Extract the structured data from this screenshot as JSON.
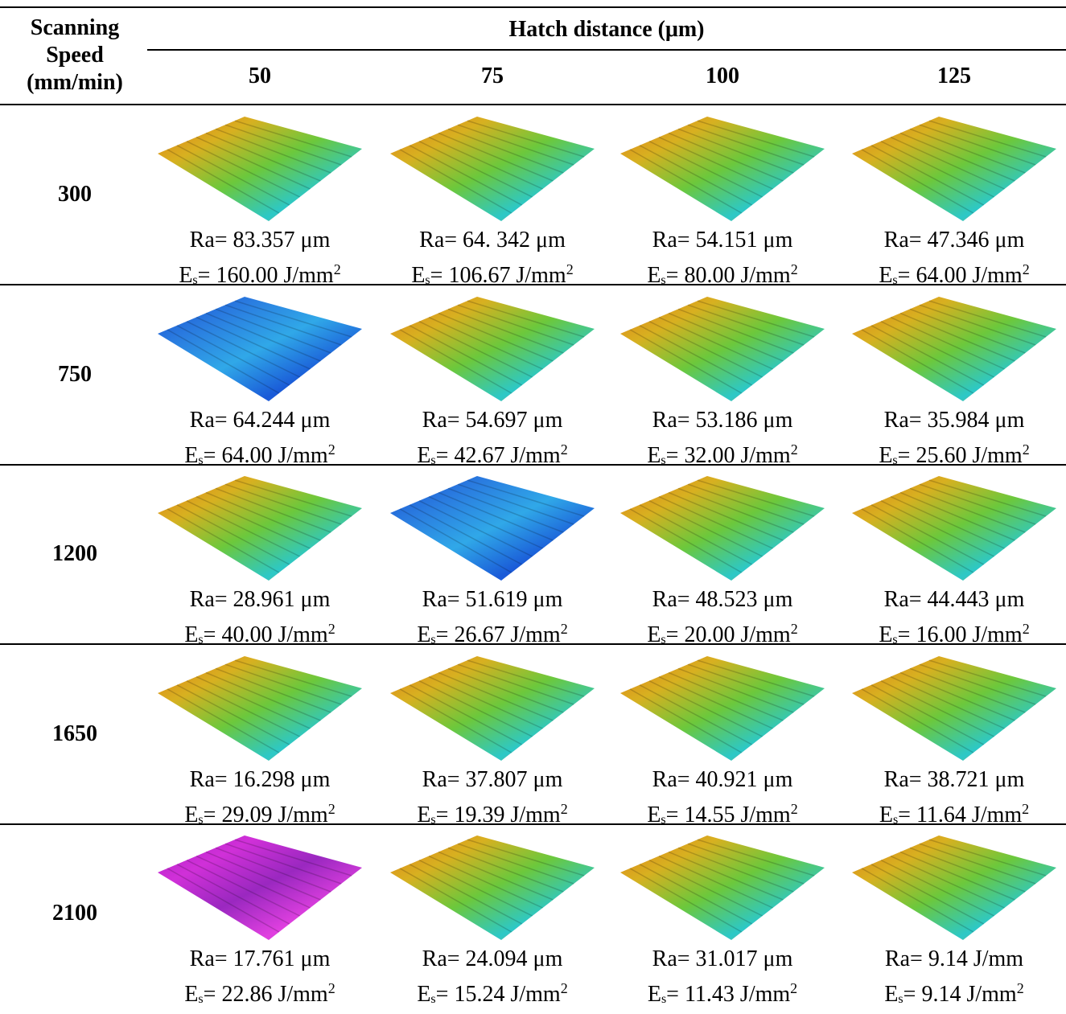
{
  "header": {
    "row_header": [
      "Scanning",
      "Speed",
      "(mm/min)"
    ],
    "group": "Hatch distance (μm)",
    "columns": [
      "50",
      "75",
      "100",
      "125"
    ]
  },
  "rows": [
    {
      "speed": "300",
      "cells": [
        {
          "ra": "Ra= 83.357 μm",
          "es": {
            "symbol": "E",
            "subscript": "s",
            "text": "= 160.00 J/mm",
            "superscript": "2"
          }
        },
        {
          "ra": "Ra= 64. 342 μm",
          "es": {
            "symbol": "E",
            "subscript": "s",
            "text": "= 106.67 J/mm",
            "superscript": "2"
          }
        },
        {
          "ra": "Ra= 54.151 μm",
          "es": {
            "symbol": "E",
            "subscript": "s",
            "text": "= 80.00 J/mm",
            "superscript": "2"
          }
        },
        {
          "ra": "Ra= 47.346 μm",
          "es": {
            "symbol": "E",
            "subscript": "s",
            "text": "= 64.00 J/mm",
            "superscript": "2"
          }
        }
      ]
    },
    {
      "speed": "750",
      "cells": [
        {
          "ra": "Ra= 64.244 μm",
          "es": {
            "symbol": "E",
            "subscript": "s",
            "text": "= 64.00 J/mm",
            "superscript": "2"
          }
        },
        {
          "ra": "Ra= 54.697 μm",
          "es": {
            "symbol": "E",
            "subscript": "s",
            "text": "= 42.67 J/mm",
            "superscript": "2"
          }
        },
        {
          "ra": "Ra= 53.186 μm",
          "es": {
            "symbol": "E",
            "subscript": "s",
            "text": "= 32.00 J/mm",
            "superscript": "2"
          }
        },
        {
          "ra": "Ra= 35.984 μm",
          "es": {
            "symbol": "E",
            "subscript": "s",
            "text": "= 25.60 J/mm",
            "superscript": "2"
          }
        }
      ]
    },
    {
      "speed": "1200",
      "cells": [
        {
          "ra": "Ra= 28.961 μm",
          "es": {
            "symbol": "E",
            "subscript": "s",
            "text": "= 40.00 J/mm",
            "superscript": "2"
          }
        },
        {
          "ra": "Ra= 51.619 μm",
          "es": {
            "symbol": "E",
            "subscript": "s",
            "text": "= 26.67 J/mm",
            "superscript": "2"
          }
        },
        {
          "ra": "Ra= 48.523 μm",
          "es": {
            "symbol": "E",
            "subscript": "s",
            "text": "= 20.00 J/mm",
            "superscript": "2"
          }
        },
        {
          "ra": "Ra= 44.443 μm",
          "es": {
            "symbol": "E",
            "subscript": "s",
            "text": "= 16.00 J/mm",
            "superscript": "2"
          }
        }
      ]
    },
    {
      "speed": "1650",
      "cells": [
        {
          "ra": "Ra= 16.298 μm",
          "es": {
            "symbol": "E",
            "subscript": "s",
            "text": "= 29.09 J/mm",
            "superscript": "2"
          }
        },
        {
          "ra": "Ra= 37.807 μm",
          "es": {
            "symbol": "E",
            "subscript": "s",
            "text": "= 19.39 J/mm",
            "superscript": "2"
          }
        },
        {
          "ra": "Ra= 40.921 μm",
          "es": {
            "symbol": "E",
            "subscript": "s",
            "text": "= 14.55 J/mm",
            "superscript": "2"
          }
        },
        {
          "ra": "Ra= 38.721 μm",
          "es": {
            "symbol": "E",
            "subscript": "s",
            "text": "= 11.64 J/mm",
            "superscript": "2"
          }
        }
      ]
    },
    {
      "speed": "2100",
      "cells": [
        {
          "ra": "Ra= 17.761 μm",
          "es": {
            "symbol": "E",
            "subscript": "s",
            "text": "= 22.86 J/mm",
            "superscript": "2"
          }
        },
        {
          "ra": "Ra= 24.094 μm",
          "es": {
            "symbol": "E",
            "subscript": "s",
            "text": "= 15.24 J/mm",
            "superscript": "2"
          }
        },
        {
          "ra": "Ra= 31.017 μm",
          "es": {
            "symbol": "E",
            "subscript": "s",
            "text": "= 11.43 J/mm",
            "superscript": "2"
          }
        },
        {
          "ra": "Ra= 9.14 J/mm",
          "es": {
            "symbol": "E",
            "subscript": "s",
            "text": "= 9.14 J/mm",
            "superscript": "2"
          }
        }
      ]
    }
  ]
}
